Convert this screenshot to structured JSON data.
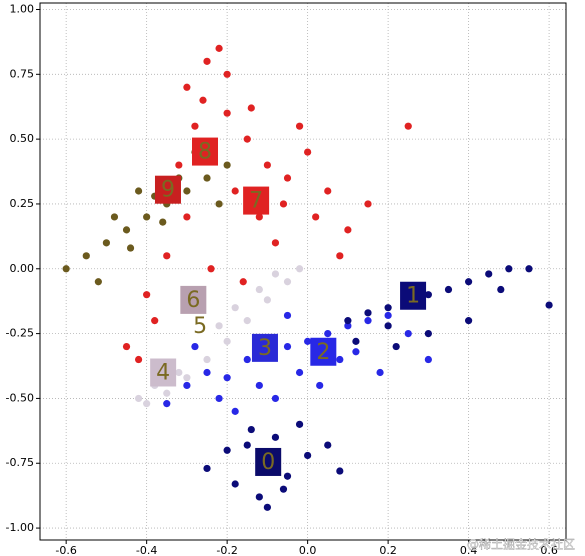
{
  "chart_data": {
    "type": "scatter",
    "xlim": [
      -0.665,
      0.642
    ],
    "ylim": [
      -1.046,
      1.025
    ],
    "xticks": [
      -0.6,
      -0.4,
      -0.2,
      {
        "value": 0,
        "label": "0.0"
      },
      0.2,
      0.4,
      0.6
    ],
    "yticks": [
      {
        "value": -1,
        "label": "-1.00"
      },
      {
        "value": -0.75,
        "label": "-0.75"
      },
      {
        "value": -0.5,
        "label": "-0.50"
      },
      {
        "value": -0.25,
        "label": "-0.25"
      },
      {
        "value": 0,
        "label": "0.00"
      },
      {
        "value": 0.25,
        "label": "0.25"
      },
      {
        "value": 0.5,
        "label": "0.50"
      },
      {
        "value": 0.75,
        "label": "0.75"
      },
      {
        "value": 1,
        "label": "1.00"
      }
    ],
    "grid": true,
    "series": [
      {
        "color": "#e02222",
        "x": [
          -0.25,
          -0.22,
          -0.3,
          -0.2,
          -0.15,
          -0.1,
          -0.05,
          0.0,
          0.05,
          -0.28,
          -0.32,
          -0.18,
          -0.12,
          -0.08,
          0.02,
          0.1,
          0.15,
          -0.35,
          -0.4,
          -0.45,
          -0.38,
          -0.42,
          -0.24,
          -0.16,
          -0.26,
          -0.2,
          -0.02,
          0.08,
          -0.14,
          0.25,
          -0.3,
          -0.06
        ],
        "values": [
          0.8,
          0.85,
          0.7,
          0.6,
          0.5,
          0.4,
          0.35,
          0.45,
          0.3,
          0.55,
          0.4,
          0.3,
          0.2,
          0.1,
          0.2,
          0.15,
          0.25,
          0.05,
          -0.1,
          -0.3,
          -0.2,
          -0.35,
          0.0,
          -0.05,
          0.65,
          0.75,
          0.55,
          0.05,
          0.62,
          0.55,
          0.2,
          0.25
        ]
      },
      {
        "color": "#6b5a1e",
        "x": [
          -0.6,
          -0.55,
          -0.5,
          -0.45,
          -0.4,
          -0.35,
          -0.3,
          -0.25,
          -0.2,
          -0.48,
          -0.42,
          -0.38,
          -0.32,
          -0.28,
          -0.22,
          -0.52,
          -0.44,
          -0.36
        ],
        "values": [
          0.0,
          0.05,
          0.1,
          0.15,
          0.2,
          0.25,
          0.3,
          0.35,
          0.4,
          0.2,
          0.3,
          0.28,
          0.35,
          0.45,
          0.25,
          -0.05,
          0.08,
          0.18
        ]
      },
      {
        "color": "#d9d2de",
        "x": [
          -0.4,
          -0.35,
          -0.3,
          -0.25,
          -0.2,
          -0.15,
          -0.1,
          -0.05,
          -0.38,
          -0.32,
          -0.28,
          -0.22,
          -0.18,
          -0.12,
          -0.3,
          -0.26,
          -0.08,
          -0.02,
          -0.42,
          -0.36
        ],
        "values": [
          -0.52,
          -0.48,
          -0.42,
          -0.35,
          -0.28,
          -0.2,
          -0.12,
          -0.05,
          -0.45,
          -0.4,
          -0.3,
          -0.22,
          -0.15,
          -0.08,
          -0.15,
          -0.25,
          -0.02,
          0.0,
          -0.5,
          -0.38
        ]
      },
      {
        "color": "#2828e6",
        "x": [
          -0.3,
          -0.25,
          -0.2,
          -0.15,
          -0.1,
          -0.05,
          0.0,
          0.05,
          0.1,
          0.15,
          0.2,
          -0.22,
          -0.12,
          -0.02,
          0.08,
          -0.18,
          -0.08,
          0.03,
          0.12,
          0.25,
          0.3,
          -0.35,
          -0.28,
          -0.05,
          0.18
        ],
        "values": [
          -0.45,
          -0.4,
          -0.42,
          -0.35,
          -0.33,
          -0.3,
          -0.28,
          -0.25,
          -0.22,
          -0.2,
          -0.18,
          -0.5,
          -0.45,
          -0.4,
          -0.35,
          -0.55,
          -0.5,
          -0.45,
          -0.32,
          -0.25,
          -0.35,
          -0.52,
          -0.3,
          -0.18,
          -0.4
        ]
      },
      {
        "color": "#0b0b78",
        "x": [
          -0.1,
          -0.15,
          -0.05,
          -0.2,
          0.0,
          -0.12,
          -0.08,
          -0.18,
          -0.02,
          0.08,
          -0.25,
          -0.1,
          0.05,
          -0.14,
          -0.06,
          0.1,
          0.15,
          0.2,
          0.25,
          0.3,
          0.35,
          0.4,
          0.45,
          0.5,
          0.55,
          0.2,
          0.3,
          0.4,
          0.12,
          0.48,
          0.6,
          0.22
        ],
        "values": [
          -0.75,
          -0.68,
          -0.8,
          -0.7,
          -0.72,
          -0.88,
          -0.65,
          -0.83,
          -0.6,
          -0.78,
          -0.77,
          -0.92,
          -0.68,
          -0.62,
          -0.85,
          -0.2,
          -0.17,
          -0.15,
          -0.12,
          -0.1,
          -0.08,
          -0.05,
          -0.02,
          0.0,
          0.0,
          -0.22,
          -0.25,
          -0.2,
          -0.28,
          -0.08,
          -0.14,
          -0.3
        ]
      }
    ],
    "annotations": [
      {
        "label": "0",
        "x": -0.098,
        "y": -0.745,
        "box_color": "#0b0b6a",
        "color": "#7a6a22"
      },
      {
        "label": "1",
        "x": 0.262,
        "y": -0.104,
        "box_color": "#0b0b78",
        "color": "#7a6a22"
      },
      {
        "label": "2",
        "x": 0.039,
        "y": -0.32,
        "box_color": "#2828e6",
        "color": "#7a6a22"
      },
      {
        "label": "3",
        "x": -0.106,
        "y": -0.305,
        "box_color": "#2a2ad6",
        "color": "#7a6a22"
      },
      {
        "label": "4",
        "x": -0.359,
        "y": -0.4,
        "box_color": "#ccbccc",
        "color": "#7a6a22"
      },
      {
        "label": "5",
        "x": -0.267,
        "y": -0.22,
        "box_color": "#ffffff",
        "color": "#7a6a22"
      },
      {
        "label": "6",
        "x": -0.284,
        "y": -0.12,
        "box_color": "#b8a0b0",
        "color": "#7a6a22"
      },
      {
        "label": "7",
        "x": -0.128,
        "y": 0.263,
        "box_color": "#e02222",
        "color": "#7a6a22"
      },
      {
        "label": "8",
        "x": -0.255,
        "y": 0.452,
        "box_color": "#e02222",
        "color": "#7a6a22"
      },
      {
        "label": "9",
        "x": -0.347,
        "y": 0.305,
        "box_color": "#c82020",
        "color": "#7a6a22"
      }
    ]
  },
  "watermark": "@稀土掘金技术社区"
}
